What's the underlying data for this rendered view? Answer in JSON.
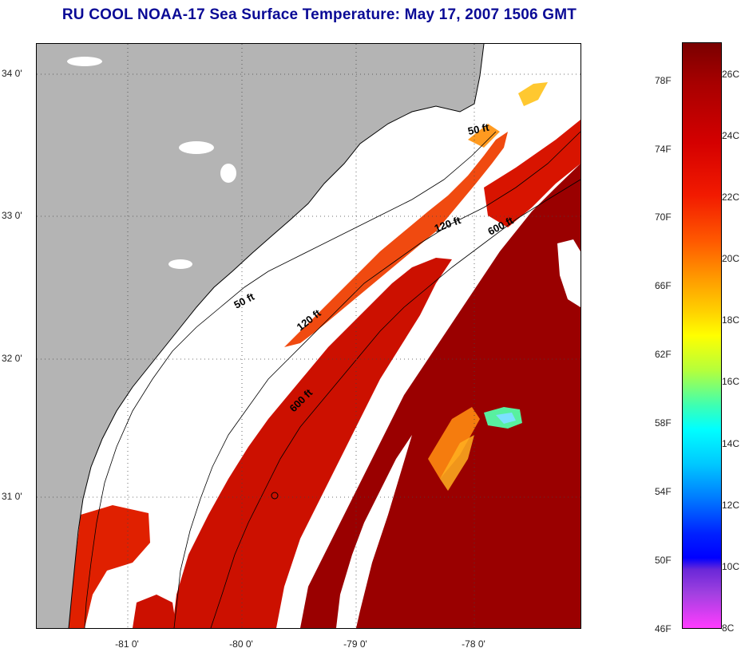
{
  "title": "RU COOL  NOAA-17  Sea Surface Temperature:  May 17, 2007 1506 GMT",
  "map": {
    "latitude_ticks": [
      "34 0'",
      "33 0'",
      "32 0'",
      "31 0'"
    ],
    "longitude_ticks": [
      "-81 0'",
      "-80 0'",
      "-79 0'",
      "-78 0'"
    ],
    "contours": [
      "50 ft",
      "120 ft",
      "600 ft"
    ],
    "colors": {
      "land": "#b4b4b4",
      "cloud": "#ffffff",
      "warm": "#c80000",
      "hot": "#8c0000",
      "orange": "#ff6a00"
    }
  },
  "colorbar": {
    "fahrenheit_labels": [
      "78F",
      "74F",
      "70F",
      "66F",
      "62F",
      "58F",
      "54F",
      "50F",
      "46F"
    ],
    "celsius_labels": [
      "26C",
      "24C",
      "22C",
      "20C",
      "18C",
      "16C",
      "14C",
      "12C",
      "10C",
      "8C"
    ]
  }
}
